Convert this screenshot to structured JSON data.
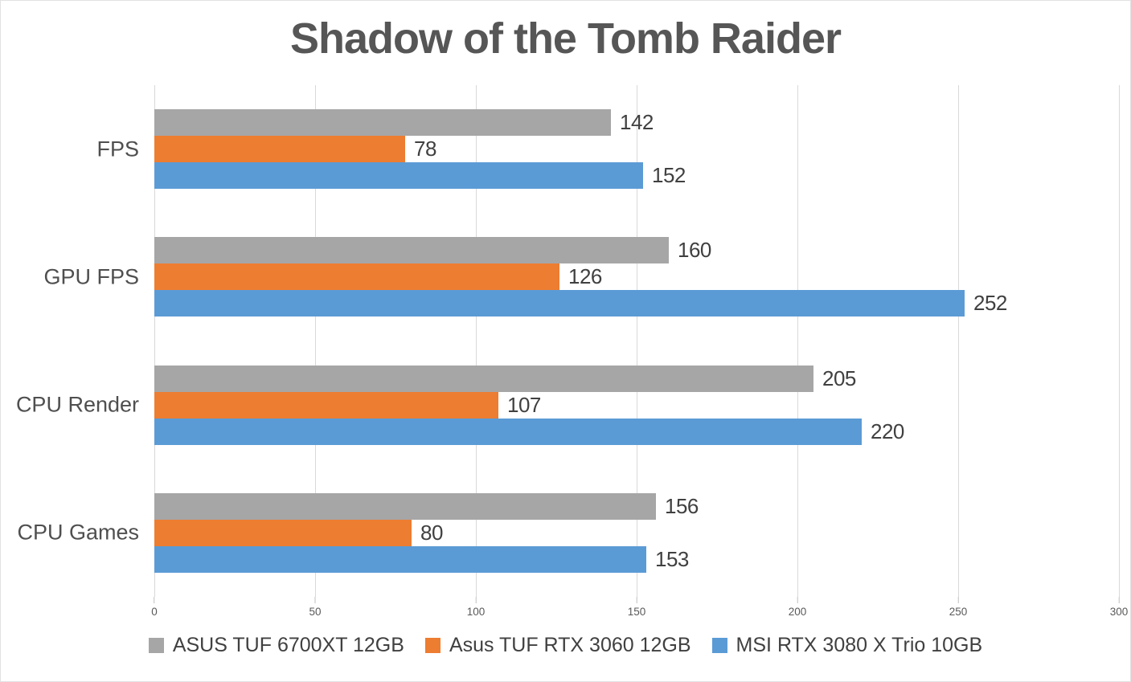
{
  "chart_data": {
    "type": "bar",
    "orientation": "horizontal",
    "title": "Shadow of the Tomb Raider",
    "categories": [
      "FPS",
      "GPU FPS",
      "CPU Render",
      "CPU Games"
    ],
    "series": [
      {
        "name": "ASUS TUF 6700XT 12GB",
        "color": "#a6a6a6",
        "values": [
          142,
          160,
          205,
          156
        ]
      },
      {
        "name": "Asus TUF RTX 3060 12GB",
        "color": "#ed7d31",
        "values": [
          78,
          126,
          107,
          80
        ]
      },
      {
        "name": "MSI RTX 3080 X Trio 10GB",
        "color": "#5b9bd5",
        "values": [
          152,
          252,
          220,
          153
        ]
      }
    ],
    "xlim": [
      0,
      300
    ],
    "x_ticks": [
      0,
      50,
      100,
      150,
      200,
      250,
      300
    ],
    "grid": "vertical",
    "gridline_color": "#d9d9d9",
    "legend_position": "bottom",
    "data_labels": true,
    "title_color": "#565656",
    "label_color": "#404040",
    "axis_label_color": "#595959"
  }
}
